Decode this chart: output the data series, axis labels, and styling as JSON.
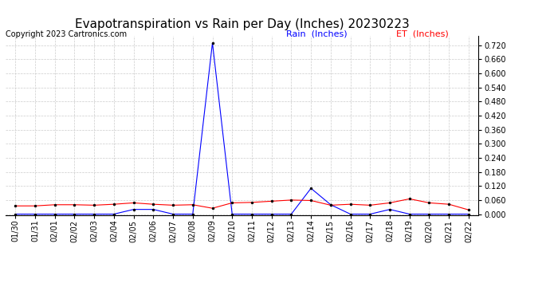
{
  "title": "Evapotranspiration vs Rain per Day (Inches) 20230223",
  "copyright": "Copyright 2023 Cartronics.com",
  "legend_rain": "Rain  (Inches)",
  "legend_et": "ET  (Inches)",
  "dates": [
    "01/30",
    "01/31",
    "02/01",
    "02/02",
    "02/03",
    "02/04",
    "02/05",
    "02/06",
    "02/07",
    "02/08",
    "02/09",
    "02/10",
    "02/11",
    "02/12",
    "02/13",
    "02/14",
    "02/15",
    "02/16",
    "02/17",
    "02/18",
    "02/19",
    "02/20",
    "02/21",
    "02/22"
  ],
  "rain": [
    0.0,
    0.0,
    0.0,
    0.0,
    0.0,
    0.0,
    0.02,
    0.02,
    0.0,
    0.0,
    0.73,
    0.0,
    0.0,
    0.0,
    0.0,
    0.11,
    0.04,
    0.0,
    0.0,
    0.02,
    0.0,
    0.0,
    0.0,
    0.0
  ],
  "et": [
    0.035,
    0.035,
    0.04,
    0.04,
    0.038,
    0.042,
    0.048,
    0.042,
    0.038,
    0.04,
    0.025,
    0.048,
    0.05,
    0.055,
    0.06,
    0.058,
    0.038,
    0.042,
    0.038,
    0.048,
    0.065,
    0.048,
    0.042,
    0.018
  ],
  "rain_color": "#0000ff",
  "et_color": "#ff0000",
  "background_color": "#ffffff",
  "grid_color": "#cccccc",
  "ylim_min": -0.005,
  "ylim_max": 0.76,
  "yticks": [
    0.0,
    0.06,
    0.12,
    0.18,
    0.24,
    0.3,
    0.36,
    0.42,
    0.48,
    0.54,
    0.6,
    0.66,
    0.72
  ],
  "title_fontsize": 11,
  "copyright_fontsize": 7,
  "legend_fontsize": 8,
  "tick_fontsize": 7
}
